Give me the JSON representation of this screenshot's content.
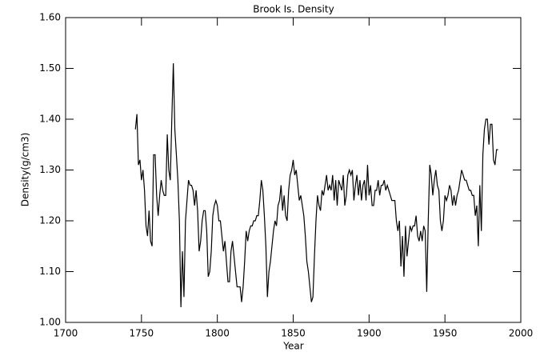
{
  "chart_data": {
    "type": "line",
    "title": "Brook Is. Density",
    "xlabel": "Year",
    "ylabel": "Density(g/cm3)",
    "x": [
      1746,
      1747,
      1748,
      1749,
      1750,
      1751,
      1752,
      1753,
      1754,
      1755,
      1756,
      1757,
      1758,
      1759,
      1760,
      1761,
      1762,
      1763,
      1764,
      1765,
      1766,
      1767,
      1768,
      1769,
      1770,
      1771,
      1772,
      1773,
      1774,
      1775,
      1776,
      1777,
      1778,
      1779,
      1780,
      1781,
      1782,
      1783,
      1784,
      1785,
      1786,
      1787,
      1788,
      1789,
      1790,
      1791,
      1792,
      1793,
      1794,
      1795,
      1796,
      1797,
      1798,
      1799,
      1800,
      1801,
      1802,
      1803,
      1804,
      1805,
      1806,
      1807,
      1808,
      1809,
      1810,
      1811,
      1812,
      1813,
      1814,
      1815,
      1816,
      1817,
      1818,
      1819,
      1820,
      1821,
      1822,
      1823,
      1824,
      1825,
      1826,
      1827,
      1828,
      1829,
      1830,
      1831,
      1832,
      1833,
      1834,
      1835,
      1836,
      1837,
      1838,
      1839,
      1840,
      1841,
      1842,
      1843,
      1844,
      1845,
      1846,
      1847,
      1848,
      1849,
      1850,
      1851,
      1852,
      1853,
      1854,
      1855,
      1856,
      1857,
      1858,
      1859,
      1860,
      1861,
      1862,
      1863,
      1864,
      1865,
      1866,
      1867,
      1868,
      1869,
      1870,
      1871,
      1872,
      1873,
      1874,
      1875,
      1876,
      1877,
      1878,
      1879,
      1880,
      1881,
      1882,
      1883,
      1884,
      1885,
      1886,
      1887,
      1888,
      1889,
      1890,
      1891,
      1892,
      1893,
      1894,
      1895,
      1896,
      1897,
      1898,
      1899,
      1900,
      1901,
      1902,
      1903,
      1904,
      1905,
      1906,
      1907,
      1908,
      1909,
      1910,
      1911,
      1912,
      1913,
      1914,
      1915,
      1916,
      1917,
      1918,
      1919,
      1920,
      1921,
      1922,
      1923,
      1924,
      1925,
      1926,
      1927,
      1928,
      1929,
      1930,
      1931,
      1932,
      1933,
      1934,
      1935,
      1936,
      1937,
      1938,
      1939,
      1940,
      1941,
      1942,
      1943,
      1944,
      1945,
      1946,
      1947,
      1948,
      1949,
      1950,
      1951,
      1952,
      1953,
      1954,
      1955,
      1956,
      1957,
      1958,
      1959,
      1960,
      1961,
      1962,
      1963,
      1964,
      1965,
      1966,
      1967,
      1968,
      1969,
      1970,
      1971,
      1972,
      1973,
      1974,
      1975,
      1976,
      1977,
      1978,
      1979,
      1980,
      1981,
      1982,
      1983,
      1984,
      1985
    ],
    "series": [
      {
        "color": "#000000",
        "values": [
          1.38,
          1.41,
          1.31,
          1.32,
          1.28,
          1.3,
          1.26,
          1.19,
          1.17,
          1.22,
          1.16,
          1.15,
          1.33,
          1.33,
          1.25,
          1.21,
          1.25,
          1.28,
          1.26,
          1.25,
          1.25,
          1.37,
          1.3,
          1.28,
          1.4,
          1.51,
          1.38,
          1.33,
          1.28,
          1.2,
          1.03,
          1.14,
          1.05,
          1.2,
          1.24,
          1.28,
          1.27,
          1.27,
          1.26,
          1.23,
          1.26,
          1.22,
          1.14,
          1.16,
          1.2,
          1.22,
          1.22,
          1.18,
          1.09,
          1.1,
          1.14,
          1.21,
          1.23,
          1.24,
          1.23,
          1.2,
          1.2,
          1.17,
          1.14,
          1.16,
          1.12,
          1.08,
          1.08,
          1.14,
          1.16,
          1.13,
          1.1,
          1.07,
          1.07,
          1.07,
          1.04,
          1.07,
          1.12,
          1.18,
          1.16,
          1.18,
          1.19,
          1.19,
          1.2,
          1.2,
          1.21,
          1.21,
          1.24,
          1.28,
          1.26,
          1.21,
          1.15,
          1.05,
          1.1,
          1.12,
          1.15,
          1.18,
          1.2,
          1.19,
          1.23,
          1.24,
          1.27,
          1.22,
          1.25,
          1.21,
          1.2,
          1.26,
          1.29,
          1.3,
          1.32,
          1.29,
          1.3,
          1.27,
          1.24,
          1.25,
          1.23,
          1.21,
          1.17,
          1.12,
          1.1,
          1.07,
          1.04,
          1.05,
          1.13,
          1.2,
          1.25,
          1.23,
          1.22,
          1.26,
          1.25,
          1.27,
          1.29,
          1.26,
          1.27,
          1.26,
          1.29,
          1.24,
          1.28,
          1.23,
          1.28,
          1.27,
          1.26,
          1.29,
          1.23,
          1.25,
          1.29,
          1.3,
          1.29,
          1.3,
          1.24,
          1.27,
          1.29,
          1.25,
          1.28,
          1.24,
          1.27,
          1.28,
          1.24,
          1.31,
          1.25,
          1.27,
          1.23,
          1.23,
          1.26,
          1.26,
          1.28,
          1.25,
          1.27,
          1.27,
          1.28,
          1.26,
          1.27,
          1.26,
          1.25,
          1.24,
          1.24,
          1.24,
          1.2,
          1.18,
          1.2,
          1.11,
          1.17,
          1.09,
          1.19,
          1.13,
          1.16,
          1.19,
          1.18,
          1.19,
          1.19,
          1.21,
          1.17,
          1.16,
          1.18,
          1.16,
          1.19,
          1.18,
          1.06,
          1.2,
          1.31,
          1.29,
          1.25,
          1.28,
          1.3,
          1.27,
          1.26,
          1.2,
          1.18,
          1.2,
          1.25,
          1.24,
          1.25,
          1.27,
          1.26,
          1.23,
          1.25,
          1.23,
          1.25,
          1.26,
          1.28,
          1.3,
          1.29,
          1.28,
          1.28,
          1.27,
          1.26,
          1.26,
          1.25,
          1.25,
          1.21,
          1.23,
          1.15,
          1.27,
          1.18,
          1.33,
          1.38,
          1.4,
          1.4,
          1.35,
          1.39,
          1.39,
          1.32,
          1.31,
          1.34,
          1.34
        ]
      }
    ],
    "xlim": [
      1700,
      2000
    ],
    "xticks": [
      1700,
      1750,
      1800,
      1850,
      1900,
      1950,
      2000
    ],
    "ylim": [
      1.0,
      1.6
    ],
    "yticks": [
      {
        "value": 1.0,
        "label": "1.00"
      },
      {
        "value": 1.1,
        "label": "1.10"
      },
      {
        "value": 1.2,
        "label": "1.20"
      },
      {
        "value": 1.3,
        "label": "1.30"
      },
      {
        "value": 1.4,
        "label": "1.40"
      },
      {
        "value": 1.5,
        "label": "1.50"
      },
      {
        "value": 1.6,
        "label": "1.60"
      }
    ]
  }
}
